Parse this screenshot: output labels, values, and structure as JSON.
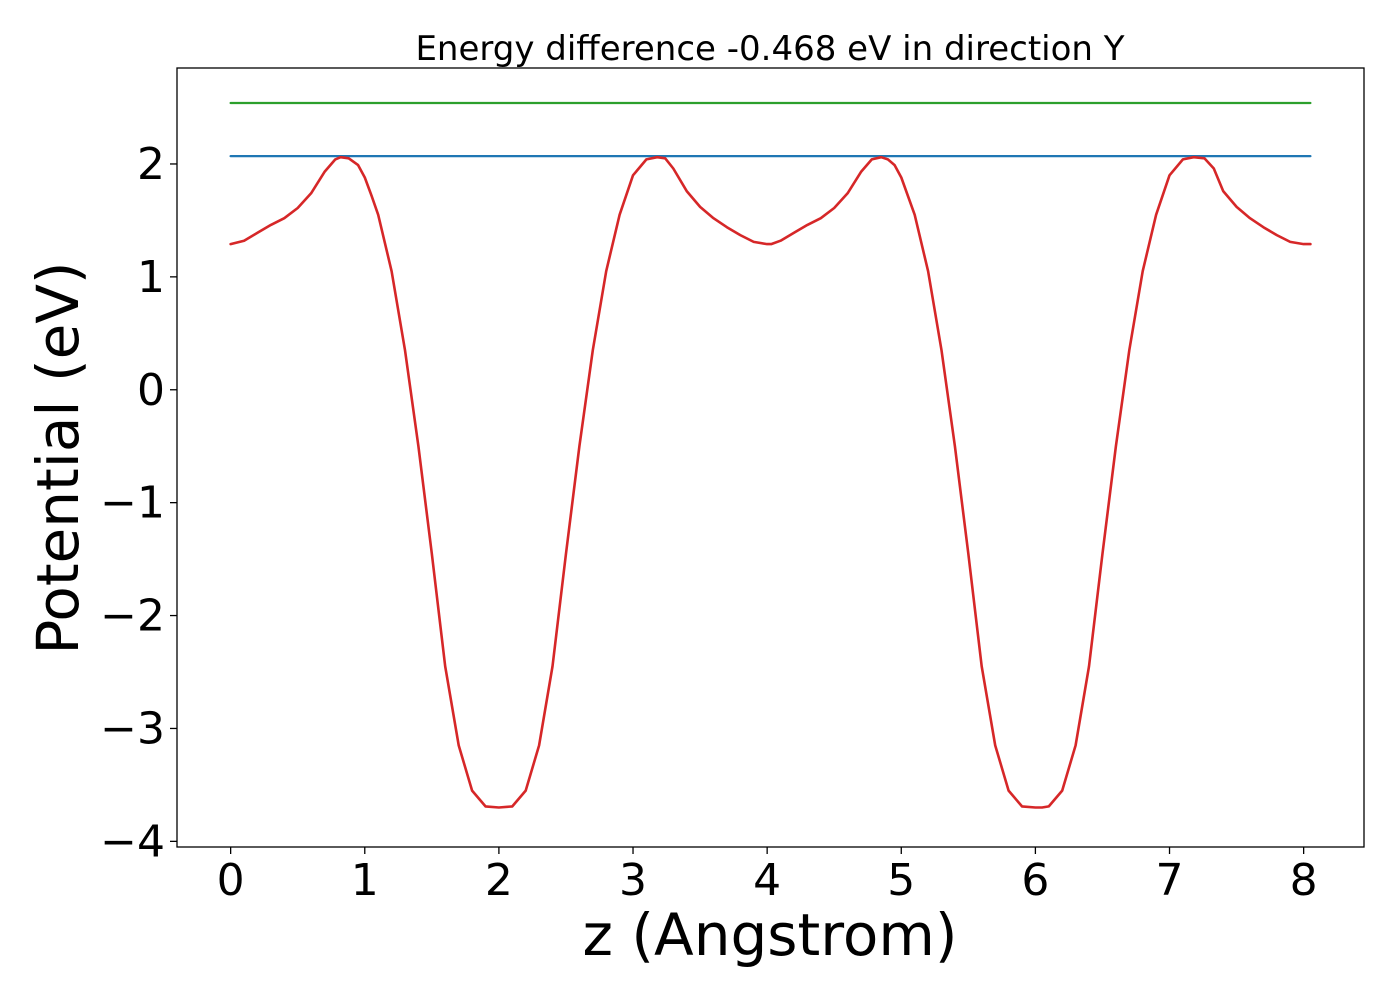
{
  "chart_data": {
    "type": "line",
    "title": "Energy difference -0.468 eV in direction Y",
    "xlabel": "z (Angstrom)",
    "ylabel": "Potential (eV)",
    "xlim": [
      -0.4,
      8.45
    ],
    "ylim": [
      -4.05,
      2.85
    ],
    "xticks": [
      0,
      1,
      2,
      3,
      4,
      5,
      6,
      7,
      8
    ],
    "xtick_labels": [
      "0",
      "1",
      "2",
      "3",
      "4",
      "5",
      "6",
      "7",
      "8"
    ],
    "yticks": [
      -4,
      -3,
      -2,
      -1,
      0,
      1,
      2
    ],
    "ytick_labels": [
      "−4",
      "−3",
      "−2",
      "−1",
      "0",
      "1",
      "2"
    ],
    "grid": false,
    "legend": "none",
    "series": [
      {
        "color": "#d62728",
        "x": [
          0.0,
          0.1,
          0.2,
          0.3,
          0.4,
          0.5,
          0.6,
          0.7,
          0.78,
          0.82,
          0.88,
          0.95,
          1.0,
          1.05,
          1.1,
          1.2,
          1.3,
          1.4,
          1.5,
          1.6,
          1.7,
          1.8,
          1.9,
          2.0,
          2.1,
          2.2,
          2.3,
          2.4,
          2.5,
          2.6,
          2.7,
          2.8,
          2.9,
          3.0,
          3.1,
          3.18,
          3.24,
          3.3,
          3.4,
          3.5,
          3.6,
          3.7,
          3.8,
          3.9,
          4.0,
          4.03,
          4.1,
          4.2,
          4.3,
          4.4,
          4.5,
          4.6,
          4.7,
          4.78,
          4.85,
          4.9,
          4.95,
          5.0,
          5.1,
          5.2,
          5.3,
          5.4,
          5.5,
          5.6,
          5.7,
          5.8,
          5.9,
          6.0,
          6.05,
          6.1,
          6.2,
          6.3,
          6.4,
          6.5,
          6.6,
          6.7,
          6.8,
          6.9,
          7.0,
          7.1,
          7.18,
          7.26,
          7.33,
          7.4,
          7.5,
          7.6,
          7.7,
          7.8,
          7.9,
          8.0,
          8.05
        ],
        "y": [
          1.29,
          1.32,
          1.39,
          1.46,
          1.52,
          1.61,
          1.74,
          1.93,
          2.04,
          2.06,
          2.05,
          1.99,
          1.88,
          1.72,
          1.55,
          1.05,
          0.35,
          -0.5,
          -1.45,
          -2.45,
          -3.15,
          -3.55,
          -3.69,
          -3.7,
          -3.69,
          -3.55,
          -3.15,
          -2.45,
          -1.45,
          -0.5,
          0.35,
          1.05,
          1.55,
          1.9,
          2.04,
          2.06,
          2.05,
          1.96,
          1.76,
          1.62,
          1.52,
          1.44,
          1.37,
          1.31,
          1.29,
          1.29,
          1.32,
          1.39,
          1.46,
          1.52,
          1.61,
          1.74,
          1.93,
          2.04,
          2.06,
          2.04,
          1.99,
          1.88,
          1.55,
          1.05,
          0.35,
          -0.5,
          -1.45,
          -2.45,
          -3.15,
          -3.55,
          -3.69,
          -3.7,
          -3.7,
          -3.69,
          -3.55,
          -3.15,
          -2.45,
          -1.45,
          -0.5,
          0.35,
          1.05,
          1.55,
          1.9,
          2.04,
          2.06,
          2.05,
          1.96,
          1.76,
          1.62,
          1.52,
          1.44,
          1.37,
          1.31,
          1.29,
          1.29
        ]
      },
      {
        "color": "#1f77b4",
        "x": [
          0.0,
          8.05
        ],
        "y": [
          2.07,
          2.07
        ]
      },
      {
        "color": "#2ca02c",
        "x": [
          0.0,
          8.05
        ],
        "y": [
          2.54,
          2.54
        ]
      }
    ]
  }
}
